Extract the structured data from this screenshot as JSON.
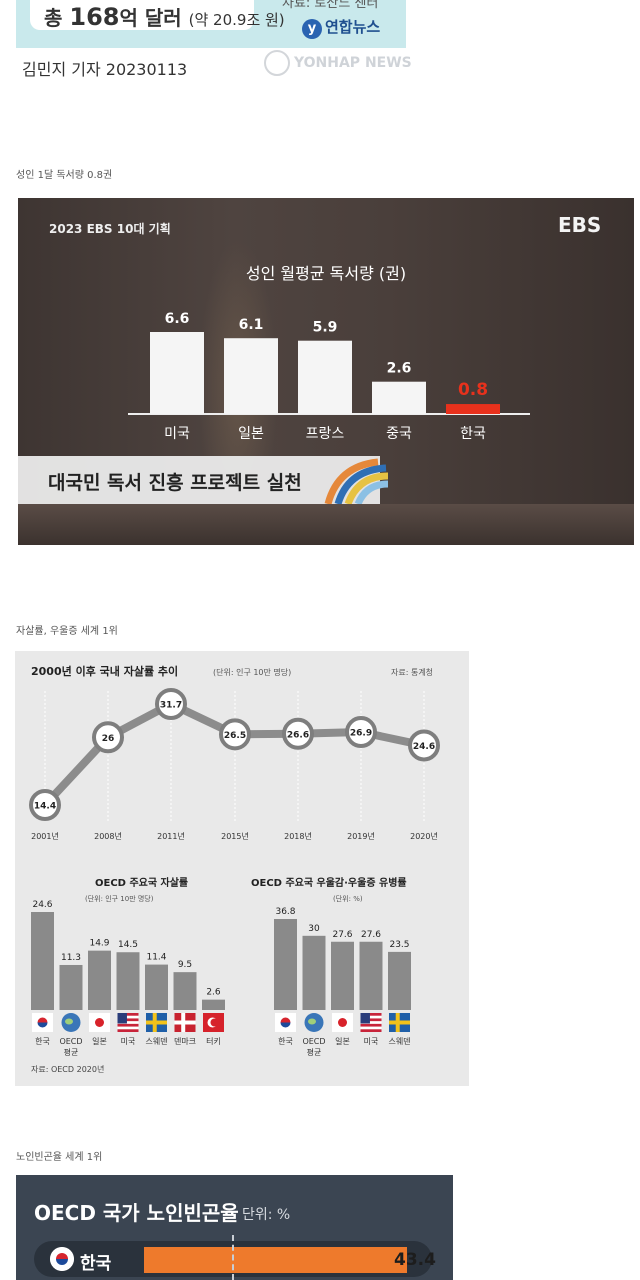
{
  "top_banner": {
    "total_prefix": "총 ",
    "total_number": "168",
    "total_suffix": "억 달러",
    "total_approx": "(약 20.9조 원)",
    "source": "자료: 로잔느 센터",
    "agency_logo": "연합뉴스",
    "watermark": "YONHAP NEWS",
    "byline": "김민지 기자  20230113"
  },
  "section1_caption": "성인 1달 독서량 0.8권",
  "section2_caption": "자살률, 우울증 세계 1위",
  "section3_caption": "노인빈곤율 세계 1위",
  "ebs": {
    "series_label": "2023 EBS 10대 기획",
    "logo": "EBS",
    "chart_title": "성인 월평균 독서량 (권)",
    "strip_text": "대국민 독서 진흥 프로젝트 실천",
    "colors": {
      "bar": "#f5f5f5",
      "highlight": "#e8311c",
      "text": "#ffffff"
    }
  },
  "suicide": {
    "title": "2000년 이후 국내 자살률 추이",
    "unit": "(단위: 인구 10만 명당)",
    "source": "자료: 통계청",
    "bottom_left_title": "OECD 주요국 자살률",
    "bottom_left_unit": "(단위: 인구 10만 명당)",
    "bottom_right_title": "OECD 주요국 우울감·우울증 유병률",
    "bottom_right_unit": "(단위: %)",
    "footer_source": "자료: OECD 2020년",
    "colors": {
      "line": "#8c8c8c",
      "bar": "#8a8a8a",
      "bg": "#e9e9e9"
    }
  },
  "poverty": {
    "title": "OECD 국가 노인빈곤율",
    "unit": "단위: %",
    "country": "한국",
    "value_label": "43.4",
    "colors": {
      "bar": "#ee7a2c",
      "bg": "#3b4552"
    }
  },
  "chart_data": [
    {
      "type": "bar",
      "title": "성인 월평균 독서량 (권)",
      "categories": [
        "미국",
        "일본",
        "프랑스",
        "중국",
        "한국"
      ],
      "values": [
        6.6,
        6.1,
        5.9,
        2.6,
        0.8
      ],
      "highlight_index": 4
    },
    {
      "type": "line",
      "title": "2000년 이후 국내 자살률 추이",
      "ylabel": "(단위: 인구 10만 명당)",
      "x": [
        "2001년",
        "2008년",
        "2011년",
        "2015년",
        "2018년",
        "2019년",
        "2020년"
      ],
      "values": [
        14.4,
        26,
        31.7,
        26.5,
        26.6,
        26.9,
        24.6
      ]
    },
    {
      "type": "bar",
      "title": "OECD 주요국 자살률",
      "ylabel": "(단위: 인구 10만 명당)",
      "categories": [
        "한국",
        "OECD 평균",
        "일본",
        "미국",
        "스웨덴",
        "덴마크",
        "터키"
      ],
      "values": [
        24.6,
        11.3,
        14.9,
        14.5,
        11.4,
        9.5,
        2.6
      ]
    },
    {
      "type": "bar",
      "title": "OECD 주요국 우울감·우울증 유병률",
      "ylabel": "(단위: %)",
      "categories": [
        "한국",
        "OECD 평균",
        "일본",
        "미국",
        "스웨덴"
      ],
      "values": [
        36.8,
        30,
        27.6,
        27.6,
        23.5
      ]
    },
    {
      "type": "bar",
      "title": "OECD 국가 노인빈곤율",
      "ylabel": "단위: %",
      "categories": [
        "한국"
      ],
      "values": [
        43.4
      ]
    }
  ],
  "flags": [
    "kr",
    "oecd",
    "jp",
    "us",
    "se",
    "dk",
    "tr"
  ]
}
